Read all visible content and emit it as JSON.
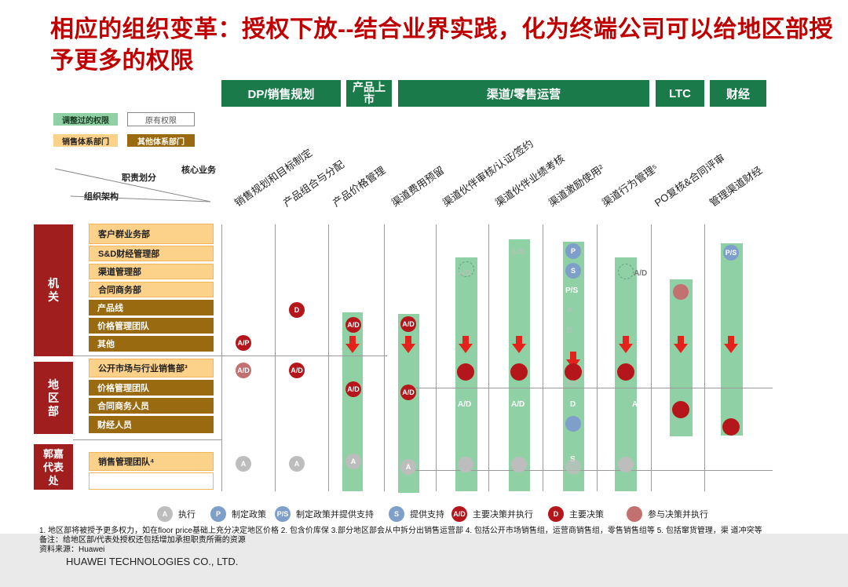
{
  "title": "相应的组织变革：授权下放--结合业界实践，化为终端公司可以给地区部授予更多的权限",
  "headers": [
    {
      "label": "DP/销售规划"
    },
    {
      "label": "产品上市"
    },
    {
      "label": "渠道/零售运营"
    },
    {
      "label": "LTC"
    },
    {
      "label": "财经"
    }
  ],
  "key_boxes": {
    "adjusted": "调整过的权限",
    "original": "原有权限",
    "sales_dept": "销售体系部门",
    "other_dept": "其他体系部门"
  },
  "diag_labels": {
    "core": "核心业务",
    "duty": "职责划分",
    "org": "组织架构"
  },
  "columns": [
    "销售规划和目标制定",
    "产品组合与分配",
    "产品价格管理",
    "渠道费用预留",
    "渠道伙伴审核/认证/签约",
    "渠道伙伴业绩考核",
    "渠道激励使用²",
    "渠道行为管理⁵",
    "PO复核&合同评审",
    "管理渠道财经"
  ],
  "groups": [
    {
      "label": "机\n关"
    },
    {
      "label": "地\n区\n部"
    },
    {
      "label": "郭嘉\n代表\n处"
    }
  ],
  "departments": [
    {
      "label": "客户群业务部",
      "kind": "light"
    },
    {
      "label": "S&D财经管理部",
      "kind": "light"
    },
    {
      "label": "渠道管理部",
      "kind": "light"
    },
    {
      "label": "合同商务部",
      "kind": "light"
    },
    {
      "label": "产品线",
      "kind": "dark"
    },
    {
      "label": "价格管理团队",
      "kind": "dark"
    },
    {
      "label": "其他",
      "kind": "dark"
    },
    {
      "label": "公开市场与行业销售部³",
      "kind": "light"
    },
    {
      "label": "价格管理团队",
      "kind": "dark"
    },
    {
      "label": "合同商务人员",
      "kind": "dark"
    },
    {
      "label": "财经人员",
      "kind": "dark"
    },
    {
      "label": "销售管理团队⁴",
      "kind": "light"
    }
  ],
  "cell_labels": {
    "ap": "A/P",
    "a": "A",
    "d": "D",
    "ad": "A/D",
    "p": "P",
    "s": "S",
    "ps": "P/S"
  },
  "legend": [
    {
      "symbol": "A",
      "text": "执行",
      "style": "gray"
    },
    {
      "symbol": "P",
      "text": "制定政策",
      "style": "blue"
    },
    {
      "symbol": "P/S",
      "text": "制定政策并提供支持",
      "style": "blue"
    },
    {
      "symbol": "S",
      "text": "提供支持",
      "style": "blue"
    },
    {
      "symbol": "A/D",
      "text": "主要决策并执行",
      "style": "dark"
    },
    {
      "symbol": "D",
      "text": "主要决策",
      "style": "dark"
    },
    {
      "symbol": "",
      "text": "参与决策并执行",
      "style": "pink"
    }
  ],
  "footnotes": [
    "1. 地区部将被授予更多权力，如在floor price基础上充分决定地区价格  2. 包含价库保  3.部分地区部会从中拆分出销售运营部  4. 包括公开市场销售组，运营商销售组，零售销售组等  5. 包括窜货管理，渠 道冲突等",
    "备注：给地区部/代表处授权还包括增加承担职责所需的资源",
    "资料来源：Huawei"
  ],
  "company": "HUAWEI TECHNOLOGIES CO., LTD.",
  "colors": {
    "title": "#c00000",
    "header_green": "#1a7a4a",
    "bar_green": "#8fd1a4",
    "dark_red": "#b4161b",
    "org_red": "#a01e1e"
  }
}
